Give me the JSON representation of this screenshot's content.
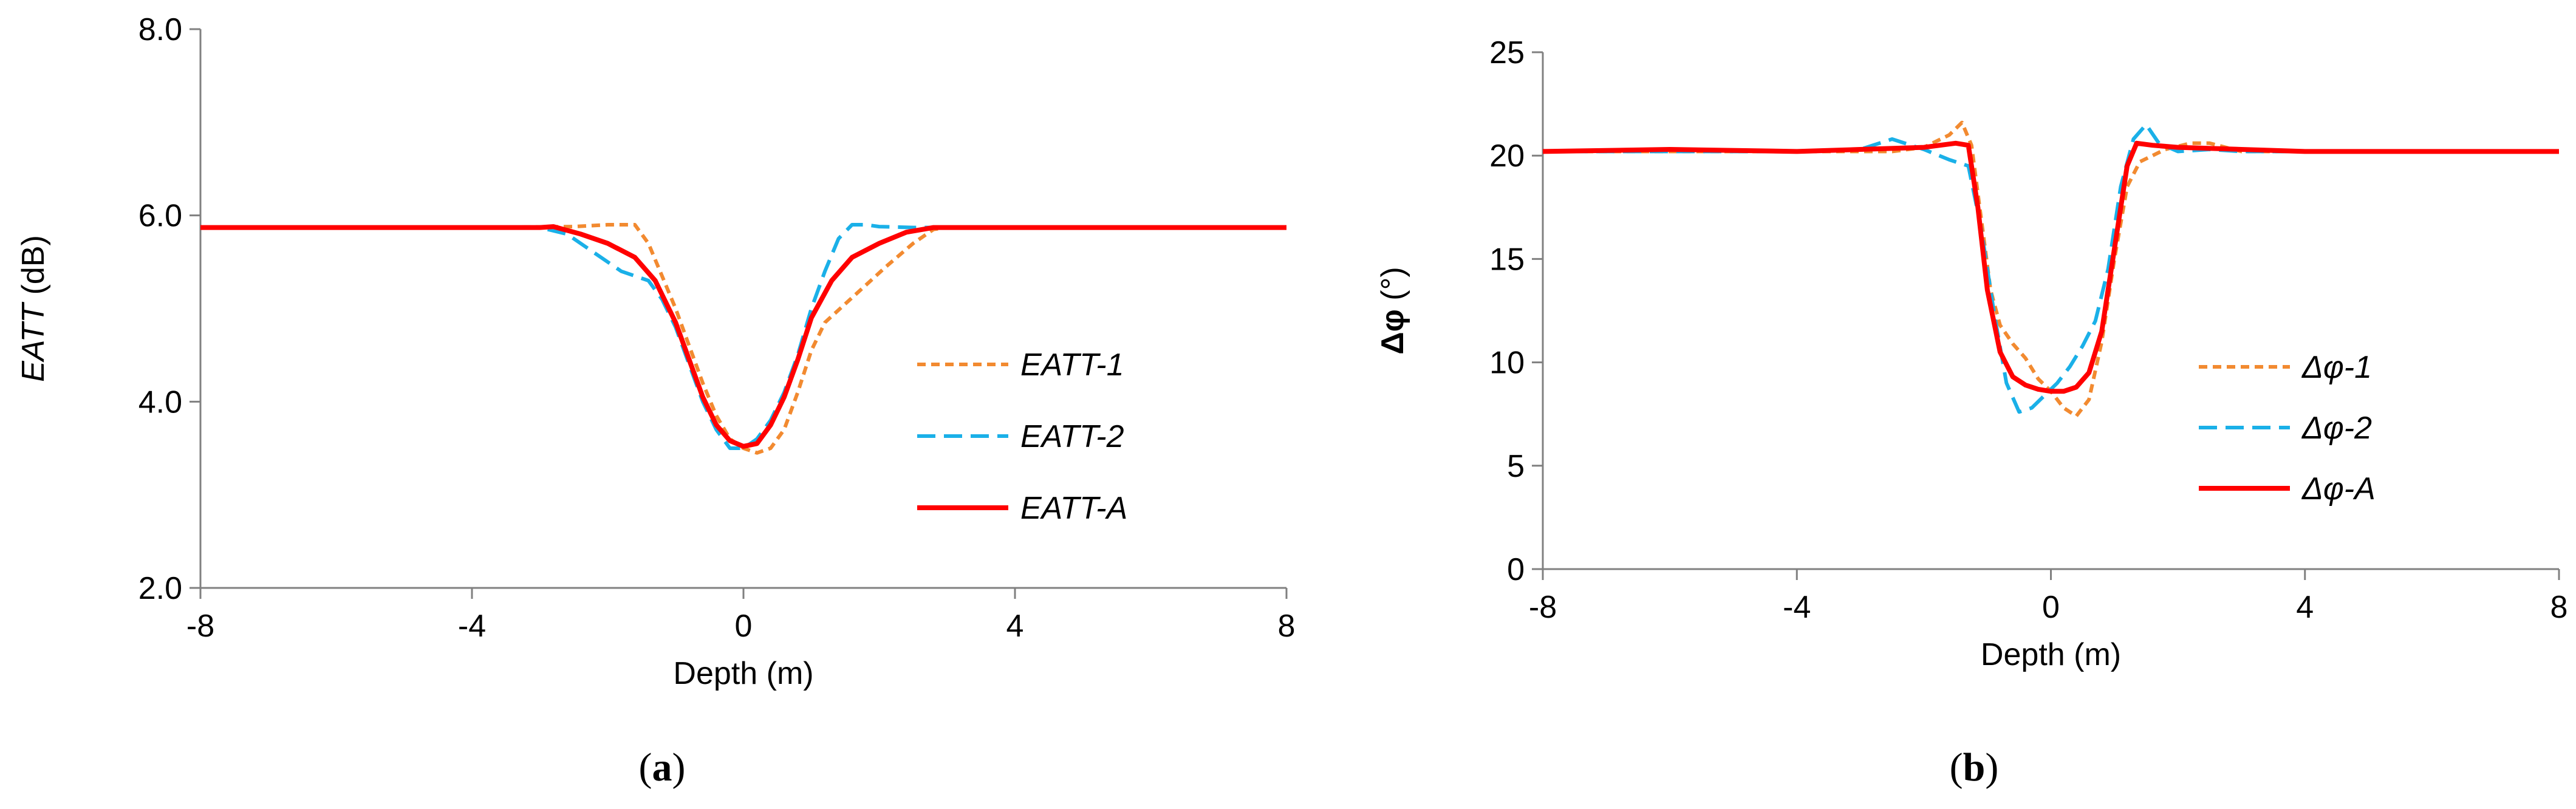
{
  "chart_data": [
    {
      "type": "line",
      "panel_label": "a",
      "xlabel": "Depth (m)",
      "ylabel_italic": "EATT",
      "ylabel_unit": " (dB)",
      "xlim": [
        -8,
        8
      ],
      "ylim": [
        2.0,
        8.0
      ],
      "xticks": [
        "-8",
        "-4",
        "0",
        "4",
        "8"
      ],
      "yticks": [
        "2.0",
        "4.0",
        "6.0",
        "8.0"
      ],
      "xtick_values": [
        -8,
        -4,
        0,
        4,
        8
      ],
      "ytick_values": [
        2.0,
        4.0,
        6.0,
        8.0
      ],
      "grid": false,
      "legend_position": "right",
      "series": [
        {
          "name": "EATT-1",
          "color": "#F28A30",
          "dash": "dashed-fine",
          "points": [
            [
              -8,
              5.87
            ],
            [
              -6,
              5.87
            ],
            [
              -4,
              5.87
            ],
            [
              -2.5,
              5.88
            ],
            [
              -2.0,
              5.9
            ],
            [
              -1.6,
              5.9
            ],
            [
              -1.4,
              5.7
            ],
            [
              -1.2,
              5.35
            ],
            [
              -1.0,
              5.0
            ],
            [
              -0.8,
              4.6
            ],
            [
              -0.6,
              4.2
            ],
            [
              -0.4,
              3.85
            ],
            [
              -0.2,
              3.6
            ],
            [
              0,
              3.5
            ],
            [
              0.2,
              3.45
            ],
            [
              0.4,
              3.5
            ],
            [
              0.6,
              3.7
            ],
            [
              0.8,
              4.1
            ],
            [
              1.0,
              4.55
            ],
            [
              1.2,
              4.85
            ],
            [
              1.5,
              5.05
            ],
            [
              1.8,
              5.25
            ],
            [
              2.1,
              5.45
            ],
            [
              2.5,
              5.7
            ],
            [
              2.8,
              5.85
            ],
            [
              3.0,
              5.87
            ],
            [
              4,
              5.87
            ],
            [
              6,
              5.87
            ],
            [
              8,
              5.87
            ]
          ]
        },
        {
          "name": "EATT-2",
          "color": "#1AB0E8",
          "dash": "dashed-long",
          "points": [
            [
              -8,
              5.87
            ],
            [
              -6,
              5.87
            ],
            [
              -4,
              5.87
            ],
            [
              -3,
              5.87
            ],
            [
              -2.6,
              5.8
            ],
            [
              -2.2,
              5.6
            ],
            [
              -1.8,
              5.4
            ],
            [
              -1.4,
              5.3
            ],
            [
              -1.2,
              5.1
            ],
            [
              -1.0,
              4.8
            ],
            [
              -0.8,
              4.4
            ],
            [
              -0.6,
              4.0
            ],
            [
              -0.4,
              3.7
            ],
            [
              -0.2,
              3.5
            ],
            [
              0,
              3.5
            ],
            [
              0.2,
              3.6
            ],
            [
              0.4,
              3.8
            ],
            [
              0.6,
              4.1
            ],
            [
              0.8,
              4.5
            ],
            [
              1.0,
              5.0
            ],
            [
              1.2,
              5.4
            ],
            [
              1.4,
              5.75
            ],
            [
              1.6,
              5.9
            ],
            [
              1.8,
              5.9
            ],
            [
              2.0,
              5.88
            ],
            [
              2.5,
              5.87
            ],
            [
              4,
              5.87
            ],
            [
              6,
              5.87
            ],
            [
              8,
              5.87
            ]
          ]
        },
        {
          "name": "EATT-A",
          "color": "#FF0000",
          "dash": "solid",
          "points": [
            [
              -8,
              5.87
            ],
            [
              -6,
              5.87
            ],
            [
              -4,
              5.87
            ],
            [
              -3,
              5.87
            ],
            [
              -2.8,
              5.88
            ],
            [
              -2.4,
              5.8
            ],
            [
              -2.0,
              5.7
            ],
            [
              -1.6,
              5.55
            ],
            [
              -1.3,
              5.3
            ],
            [
              -1.0,
              4.85
            ],
            [
              -0.8,
              4.45
            ],
            [
              -0.6,
              4.05
            ],
            [
              -0.4,
              3.75
            ],
            [
              -0.2,
              3.58
            ],
            [
              0,
              3.52
            ],
            [
              0.2,
              3.55
            ],
            [
              0.4,
              3.75
            ],
            [
              0.6,
              4.05
            ],
            [
              0.8,
              4.45
            ],
            [
              1.0,
              4.9
            ],
            [
              1.3,
              5.3
            ],
            [
              1.6,
              5.55
            ],
            [
              2.0,
              5.7
            ],
            [
              2.4,
              5.82
            ],
            [
              2.8,
              5.87
            ],
            [
              4,
              5.87
            ],
            [
              6,
              5.87
            ],
            [
              8,
              5.87
            ]
          ]
        }
      ]
    },
    {
      "type": "line",
      "panel_label": "b",
      "xlabel": "Depth (m)",
      "ylabel_symbol": "Δφ",
      "ylabel_unit": " (°)",
      "xlim": [
        -8,
        8
      ],
      "ylim": [
        0,
        25
      ],
      "xticks": [
        "-8",
        "-4",
        "0",
        "4",
        "8"
      ],
      "yticks": [
        "0",
        "5",
        "10",
        "15",
        "20",
        "25"
      ],
      "xtick_values": [
        -8,
        -4,
        0,
        4,
        8
      ],
      "ytick_values": [
        0,
        5,
        10,
        15,
        20,
        25
      ],
      "grid": false,
      "legend_position": "right",
      "series": [
        {
          "name": "Δφ-1",
          "color": "#F28A30",
          "dash": "dashed-fine",
          "points": [
            [
              -8,
              20.2
            ],
            [
              -6,
              20.2
            ],
            [
              -4,
              20.2
            ],
            [
              -2.5,
              20.2
            ],
            [
              -2.0,
              20.4
            ],
            [
              -1.6,
              21.0
            ],
            [
              -1.4,
              21.6
            ],
            [
              -1.25,
              20.5
            ],
            [
              -1.1,
              17.0
            ],
            [
              -0.95,
              13.5
            ],
            [
              -0.8,
              11.8
            ],
            [
              -0.6,
              10.9
            ],
            [
              -0.4,
              10.2
            ],
            [
              -0.2,
              9.2
            ],
            [
              0,
              8.6
            ],
            [
              0.2,
              7.8
            ],
            [
              0.4,
              7.4
            ],
            [
              0.6,
              8.2
            ],
            [
              0.8,
              11.0
            ],
            [
              1.0,
              15.0
            ],
            [
              1.2,
              18.5
            ],
            [
              1.4,
              19.7
            ],
            [
              1.8,
              20.3
            ],
            [
              2.2,
              20.6
            ],
            [
              2.5,
              20.6
            ],
            [
              3,
              20.2
            ],
            [
              4,
              20.2
            ],
            [
              6,
              20.2
            ],
            [
              8,
              20.2
            ]
          ]
        },
        {
          "name": "Δφ-2",
          "color": "#1AB0E8",
          "dash": "dashed-long",
          "points": [
            [
              -8,
              20.2
            ],
            [
              -6,
              20.2
            ],
            [
              -4,
              20.2
            ],
            [
              -3,
              20.3
            ],
            [
              -2.5,
              20.8
            ],
            [
              -2.0,
              20.3
            ],
            [
              -1.6,
              19.8
            ],
            [
              -1.3,
              19.5
            ],
            [
              -1.1,
              16.5
            ],
            [
              -0.9,
              12.5
            ],
            [
              -0.7,
              9.0
            ],
            [
              -0.5,
              7.6
            ],
            [
              -0.3,
              7.8
            ],
            [
              -0.1,
              8.4
            ],
            [
              0.1,
              9.0
            ],
            [
              0.3,
              9.8
            ],
            [
              0.5,
              10.8
            ],
            [
              0.7,
              12.0
            ],
            [
              0.9,
              14.5
            ],
            [
              1.1,
              18.5
            ],
            [
              1.3,
              20.8
            ],
            [
              1.5,
              21.5
            ],
            [
              1.7,
              20.6
            ],
            [
              2.0,
              20.2
            ],
            [
              2.5,
              20.3
            ],
            [
              3,
              20.2
            ],
            [
              4,
              20.2
            ],
            [
              6,
              20.2
            ],
            [
              8,
              20.2
            ]
          ]
        },
        {
          "name": "Δφ-A",
          "color": "#FF0000",
          "dash": "solid",
          "points": [
            [
              -8,
              20.2
            ],
            [
              -6,
              20.3
            ],
            [
              -4,
              20.2
            ],
            [
              -3,
              20.3
            ],
            [
              -2,
              20.4
            ],
            [
              -1.5,
              20.6
            ],
            [
              -1.3,
              20.5
            ],
            [
              -1.15,
              17.5
            ],
            [
              -1.0,
              13.5
            ],
            [
              -0.8,
              10.5
            ],
            [
              -0.6,
              9.3
            ],
            [
              -0.4,
              8.9
            ],
            [
              -0.2,
              8.7
            ],
            [
              0,
              8.6
            ],
            [
              0.2,
              8.6
            ],
            [
              0.4,
              8.8
            ],
            [
              0.6,
              9.5
            ],
            [
              0.8,
              11.5
            ],
            [
              1.0,
              15.5
            ],
            [
              1.2,
              19.5
            ],
            [
              1.35,
              20.6
            ],
            [
              1.6,
              20.5
            ],
            [
              2,
              20.4
            ],
            [
              3,
              20.3
            ],
            [
              4,
              20.2
            ],
            [
              6,
              20.2
            ],
            [
              8,
              20.2
            ]
          ]
        }
      ]
    }
  ]
}
